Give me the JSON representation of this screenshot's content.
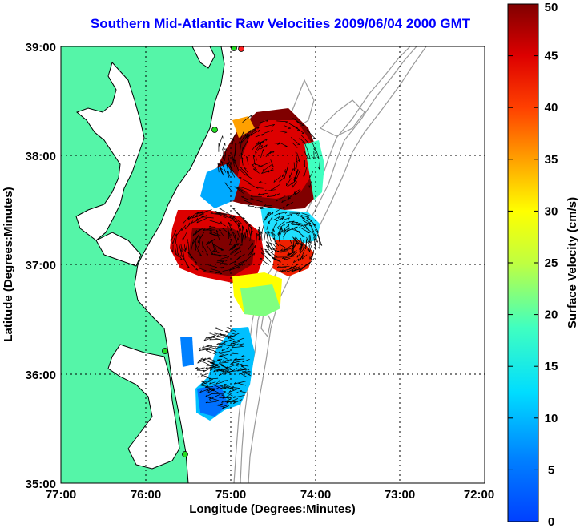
{
  "title": "Southern Mid-Atlantic Raw Velocities 2009/06/04 2000 GMT",
  "map": {
    "xlabel": "Longitude (Degrees:Minutes)",
    "ylabel": "Latitude (Degrees:Minutes)",
    "x_ticks": [
      "77:00",
      "76:00",
      "75:00",
      "74:00",
      "73:00",
      "72:00"
    ],
    "y_ticks": [
      "39:00",
      "38:00",
      "37:00",
      "36:00",
      "35:00"
    ],
    "lon_range": [
      -77,
      -72
    ],
    "lat_range": [
      35,
      39
    ],
    "land_color": "#55f5a8",
    "station_color": "#22dd22",
    "bathymetry_color": "#9a9a9a"
  },
  "colorbar": {
    "label": "Surface Velocity (cm/s)",
    "min": 0,
    "max": 50,
    "ticks": [
      "0",
      "5",
      "10",
      "15",
      "20",
      "25",
      "30",
      "35",
      "40",
      "45",
      "50"
    ]
  }
}
